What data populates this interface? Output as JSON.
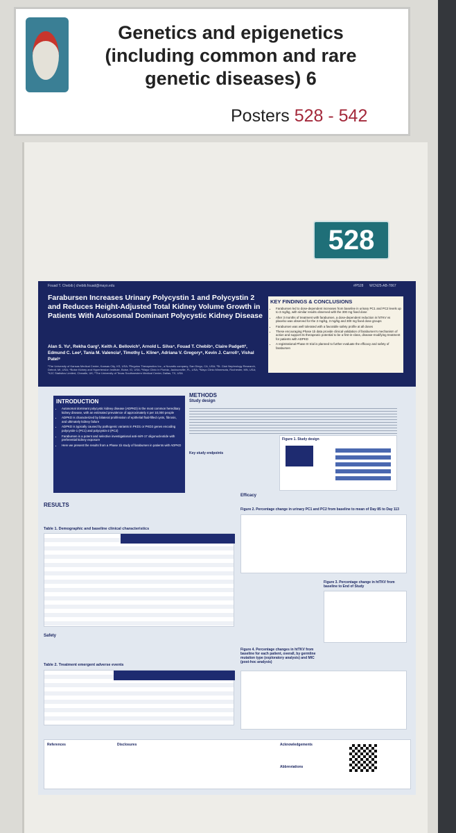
{
  "sign": {
    "title_lines": [
      "Genetics and epigenetics",
      "(including common and rare",
      "genetic diseases) 6"
    ],
    "posters_label": "Posters",
    "poster_range": "528 - 542"
  },
  "board_number": "528",
  "poster": {
    "author_contact": "Fouad T. Chebib | chebib.fouad@mayo.edu",
    "poster_id": "#P528",
    "abstract_id": "WCN25-AB-7867",
    "title": "Farabursen Increases Urinary Polycystin 1 and Polycystin 2 and Reduces Height-Adjusted Total Kidney Volume Growth in Patients With Autosomal Dominant Polycystic Kidney Disease",
    "authors": "Alan S. Yu¹, Rekha Garg², Keith A. Bellovich³, Arnold L. Silva⁴, Fouad T. Chebib⁵, Claire Padgett², Edmund C. Lee², Tania M. Valencia², Timothy L. Kline⁶, Adriana V. Gregory⁶, Kevin J. Carroll⁷, Vishal Patel⁸",
    "affiliations": "¹The University of Kansas Medical Center, Kansas City, KS, USA; ²Regulus Therapeutics Inc., a Novartis company, San Diego, CA, USA; ³St. Clair Nephrology Research, Detroit, MI, USA; ⁴Boise Kidney and Hypertension Institute, Boise, ID, USA; ⁵Mayo Clinic in Florida, Jacksonville, FL, USA; ⁶Mayo Clinic Minnesota, Rochester, MN, USA; ⁷KJC Statistics Limited, Cheadle, UK; ⁸The University of Texas Southwestern Medical Center, Dallas, TX, USA",
    "key_findings": {
      "heading": "KEY FINDINGS & CONCLUSIONS",
      "items": [
        "Farabursen led to dose-dependent increases from baseline in urinary PC1 and PC2 levels up to 3 mg/kg, with similar results observed with the 300 mg fixed dose",
        "After 3 months of treatment with farabursen, a dose-dependent reduction in htTKV vs placebo was observed for the 2 mg/kg, 3 mg/kg and 300 mg fixed dose groups",
        "Farabursen was well tolerated with a favorable safety profile at all doses",
        "These encouraging Phase 1b data provide clinical validation of farabursen's mechanism of action and support its therapeutic potential to be a first-in-class, disease-modifying treatment for patients with ADPKD",
        "A registrational Phase III trial is planned to further evaluate the efficacy and safety of farabursen"
      ]
    },
    "introduction": {
      "heading": "INTRODUCTION",
      "items": [
        "Autosomal dominant polycystic kidney disease (ADPKD) is the most common hereditary kidney disease, with an estimated prevalence of approximately 4 per 10,000 people",
        "ADPKD is characterized by bilateral proliferation of epithelial fluid-filled cysts, fibrosis, and ultimately kidney failure",
        "ADPKD is typically caused by pathogenic variants in PKD1 or PKD2 genes encoding polycystin-1 (PC1) and polycystin-2 (PC2)",
        "Farabursen is a potent and selective investigational anti-miR-17 oligonucleotide with preferential kidney exposure",
        "Here we present the results from a Phase 1b study of farabursen in patients with ADPKD"
      ]
    },
    "methods": {
      "heading": "METHODS",
      "study_design": "Study design",
      "endpoints": "Key study endpoints",
      "figure": "Figure 1. Study design"
    },
    "results": {
      "heading": "RESULTS",
      "table1": "Table 1. Demographic and baseline clinical characteristics",
      "safety": "Safety",
      "table2": "Table 2. Treatment emergent adverse events"
    },
    "efficacy": {
      "heading": "Efficacy",
      "figure2": "Figure 2. Percentage change in urinary PC1 and PC2 from baseline to mean of Day 85 to Day 113",
      "figure3": "Figure 3. Percentage change in htTKV from baseline to End of Study",
      "figure4": "Figure 4. Percentage changes in htTKV from baseline for each patient, overall, by germline mutation type (exploratory analysis) and MIC (post-hoc analysis)"
    },
    "footer": {
      "references": "References",
      "disclosures": "Disclosures",
      "acknowledgements": "Acknowledgements",
      "abbreviations": "Abbreviations"
    }
  }
}
